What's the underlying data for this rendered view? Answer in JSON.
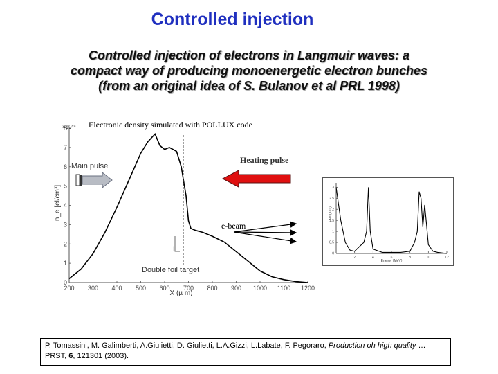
{
  "title": "Controlled injection",
  "subtitle": [
    "Controlled injection of electrons in Langmuir waves: a",
    "compact way of producing monoenergetic electron bunches",
    "(from an original idea of S. Bulanov et al PRL 1998)"
  ],
  "main_figure": {
    "caption": "Electronic density simulated with POLLUX code",
    "annotations": {
      "main_pulse": "Main pulse",
      "heating_pulse": "Heating pulse",
      "e_beam": "e-beam",
      "length_symbol": "L",
      "target": "Double foil target"
    },
    "colors": {
      "heating_arrow": "#e01010",
      "main_arrow": "#b0b0b0"
    }
  },
  "chart_data": [
    {
      "type": "line",
      "xlabel": "X (µ m)",
      "ylabel": "n_e [el/cm³]",
      "y_exponent": "×10¹⁹",
      "xlim": [
        200,
        1200
      ],
      "ylim": [
        0,
        8
      ],
      "x_ticks": [
        "200",
        "300",
        "400",
        "500",
        "600",
        "700",
        "800",
        "900",
        "1000",
        "1100",
        "1200"
      ],
      "y_ticks": [
        "0",
        "1",
        "2",
        "3",
        "4",
        "5",
        "6",
        "7",
        "8"
      ],
      "series": [
        {
          "x": [
            200,
            250,
            300,
            350,
            400,
            450,
            500,
            530,
            560,
            580,
            600,
            620,
            650,
            670,
            690,
            700,
            710,
            730,
            760,
            800,
            850,
            900,
            950,
            1000,
            1050,
            1100,
            1150,
            1200
          ],
          "y": [
            0.2,
            0.7,
            1.5,
            2.6,
            3.9,
            5.3,
            6.7,
            7.3,
            7.7,
            7.1,
            6.9,
            7.0,
            6.8,
            6.0,
            4.5,
            3.2,
            2.8,
            2.7,
            2.6,
            2.4,
            2.1,
            1.6,
            1.1,
            0.6,
            0.3,
            0.15,
            0.05,
            0
          ]
        }
      ]
    },
    {
      "type": "line",
      "xlabel": "Energy (MeV)",
      "ylabel": "Ne (a.u.)",
      "xlim": [
        0,
        12
      ],
      "x_ticks": [
        "2",
        "4",
        "6",
        "8",
        "10",
        "12"
      ],
      "y_ticks": [
        "0",
        "0.5",
        "1",
        "1.5",
        "2",
        "2.5",
        "3"
      ],
      "ylim": [
        0,
        3.2
      ],
      "series": [
        {
          "x": [
            0,
            0.5,
            1,
            1.5,
            2,
            2.5,
            3,
            3.3,
            3.5,
            3.7,
            4,
            5,
            6,
            7,
            8,
            8.5,
            8.8,
            9.0,
            9.2,
            9.4,
            9.6,
            9.8,
            10,
            10.5,
            11,
            12
          ],
          "y": [
            3.0,
            1.5,
            0.5,
            0.15,
            0.1,
            0.3,
            0.5,
            1.0,
            3.0,
            1.0,
            0.2,
            0.05,
            0.05,
            0.05,
            0.1,
            0.5,
            1.0,
            2.8,
            2.5,
            1.2,
            2.2,
            1.3,
            0.4,
            0.1,
            0.05,
            0
          ]
        }
      ]
    }
  ],
  "reference": {
    "authors": "P. Tomassini, M. Galimberti, A.Giulietti, D. Giulietti, L.A.Gizzi, L.Labate, F. Pegoraro, ",
    "title_italic": "Production oh high quality",
    "journal_pre": "…PRST, ",
    "volume": "6",
    "journal_post": ", 121301 (2003)."
  }
}
